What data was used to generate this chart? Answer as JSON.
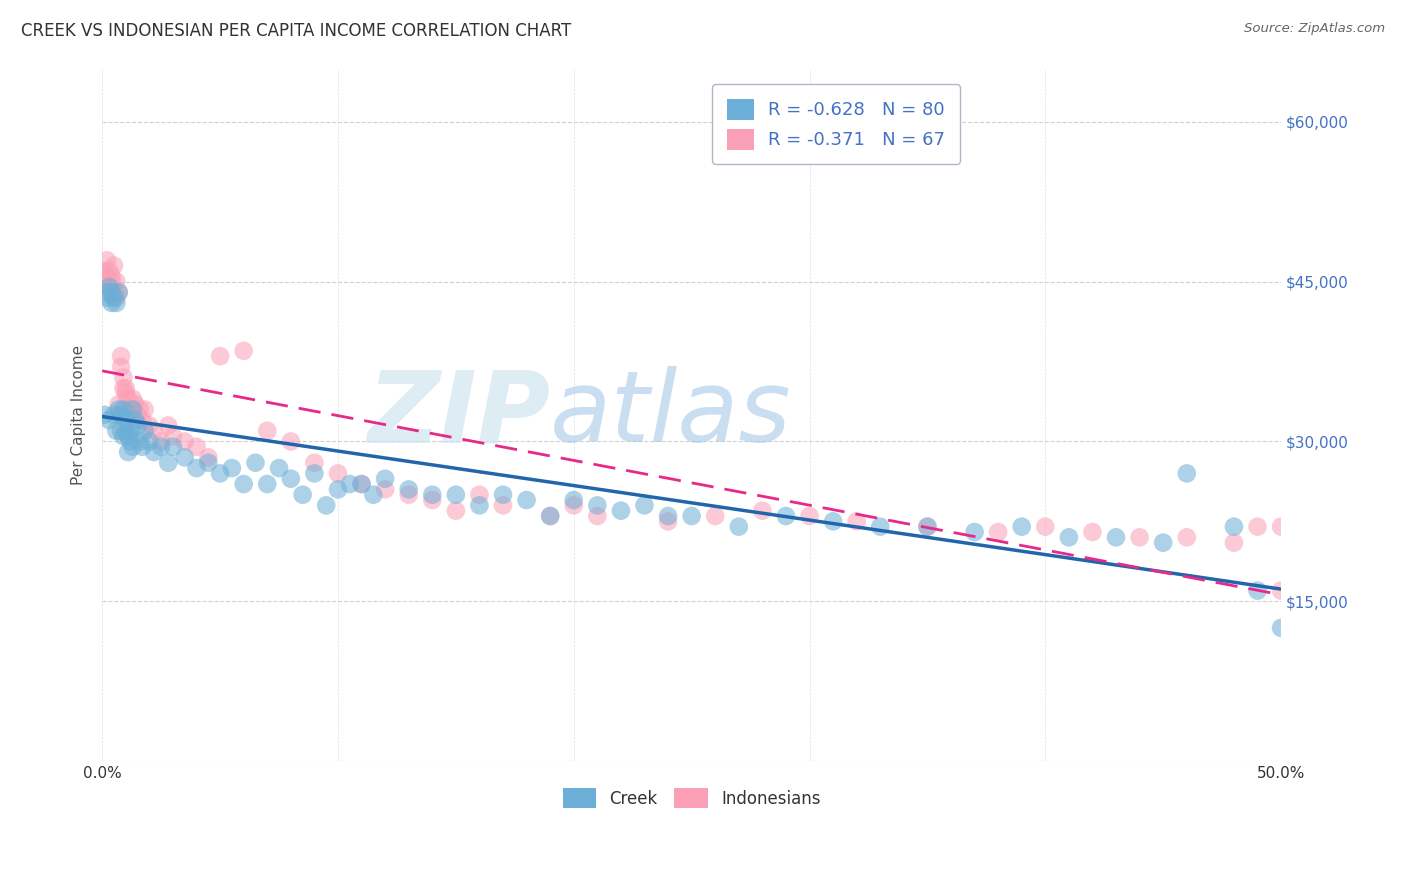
{
  "title": "CREEK VS INDONESIAN PER CAPITA INCOME CORRELATION CHART",
  "source": "Source: ZipAtlas.com",
  "ylabel": "Per Capita Income",
  "xlim": [
    0.0,
    0.5
  ],
  "ylim": [
    0,
    65000
  ],
  "yticks": [
    0,
    15000,
    30000,
    45000,
    60000
  ],
  "yticklabels": [
    "",
    "$15,000",
    "$30,000",
    "$45,000",
    "$60,000"
  ],
  "creek_R": -0.628,
  "creek_N": 80,
  "indonesian_R": -0.371,
  "indonesian_N": 67,
  "creek_color": "#6baed6",
  "indonesian_color": "#fa9fb5",
  "creek_line_color": "#2166ac",
  "indonesian_line_color": "#e7298a",
  "watermark_zip": "ZIP",
  "watermark_atlas": "atlas",
  "creek_x": [
    0.001,
    0.002,
    0.002,
    0.003,
    0.003,
    0.004,
    0.004,
    0.005,
    0.005,
    0.006,
    0.006,
    0.007,
    0.007,
    0.008,
    0.008,
    0.009,
    0.009,
    0.01,
    0.01,
    0.011,
    0.011,
    0.012,
    0.012,
    0.013,
    0.013,
    0.014,
    0.015,
    0.016,
    0.017,
    0.018,
    0.02,
    0.022,
    0.025,
    0.028,
    0.03,
    0.035,
    0.04,
    0.045,
    0.05,
    0.055,
    0.06,
    0.065,
    0.07,
    0.075,
    0.08,
    0.085,
    0.09,
    0.095,
    0.1,
    0.105,
    0.11,
    0.115,
    0.12,
    0.13,
    0.14,
    0.15,
    0.16,
    0.17,
    0.18,
    0.19,
    0.2,
    0.21,
    0.22,
    0.23,
    0.24,
    0.25,
    0.27,
    0.29,
    0.31,
    0.33,
    0.35,
    0.37,
    0.39,
    0.41,
    0.43,
    0.45,
    0.46,
    0.48,
    0.49,
    0.5
  ],
  "creek_y": [
    32500,
    44000,
    43500,
    44500,
    32000,
    43000,
    44000,
    43500,
    32500,
    43000,
    31000,
    44000,
    33000,
    32500,
    31000,
    30500,
    33000,
    31000,
    32000,
    30500,
    29000,
    31000,
    30000,
    33000,
    29500,
    32000,
    31500,
    30000,
    29500,
    31000,
    30000,
    29000,
    29500,
    28000,
    29500,
    28500,
    27500,
    28000,
    27000,
    27500,
    26000,
    28000,
    26000,
    27500,
    26500,
    25000,
    27000,
    24000,
    25500,
    26000,
    26000,
    25000,
    26500,
    25500,
    25000,
    25000,
    24000,
    25000,
    24500,
    23000,
    24500,
    24000,
    23500,
    24000,
    23000,
    23000,
    22000,
    23000,
    22500,
    22000,
    22000,
    21500,
    22000,
    21000,
    21000,
    20500,
    27000,
    22000,
    16000,
    12500
  ],
  "indonesian_x": [
    0.001,
    0.001,
    0.002,
    0.002,
    0.003,
    0.003,
    0.004,
    0.004,
    0.005,
    0.005,
    0.006,
    0.006,
    0.007,
    0.007,
    0.008,
    0.008,
    0.009,
    0.009,
    0.01,
    0.01,
    0.011,
    0.012,
    0.013,
    0.014,
    0.015,
    0.016,
    0.017,
    0.018,
    0.02,
    0.022,
    0.025,
    0.028,
    0.03,
    0.035,
    0.04,
    0.045,
    0.05,
    0.06,
    0.07,
    0.08,
    0.09,
    0.1,
    0.11,
    0.12,
    0.13,
    0.14,
    0.15,
    0.16,
    0.17,
    0.19,
    0.2,
    0.21,
    0.24,
    0.26,
    0.28,
    0.3,
    0.32,
    0.35,
    0.38,
    0.4,
    0.42,
    0.44,
    0.46,
    0.48,
    0.49,
    0.5,
    0.5
  ],
  "indonesian_y": [
    46000,
    45500,
    47000,
    45000,
    46000,
    44500,
    45500,
    45000,
    46500,
    44000,
    45000,
    43500,
    44000,
    33500,
    38000,
    37000,
    35000,
    36000,
    34500,
    35000,
    34000,
    33000,
    34000,
    33500,
    32500,
    33000,
    32000,
    33000,
    31500,
    31000,
    30000,
    31500,
    30500,
    30000,
    29500,
    28500,
    38000,
    38500,
    31000,
    30000,
    28000,
    27000,
    26000,
    25500,
    25000,
    24500,
    23500,
    25000,
    24000,
    23000,
    24000,
    23000,
    22500,
    23000,
    23500,
    23000,
    22500,
    22000,
    21500,
    22000,
    21500,
    21000,
    21000,
    20500,
    22000,
    22000,
    16000
  ]
}
